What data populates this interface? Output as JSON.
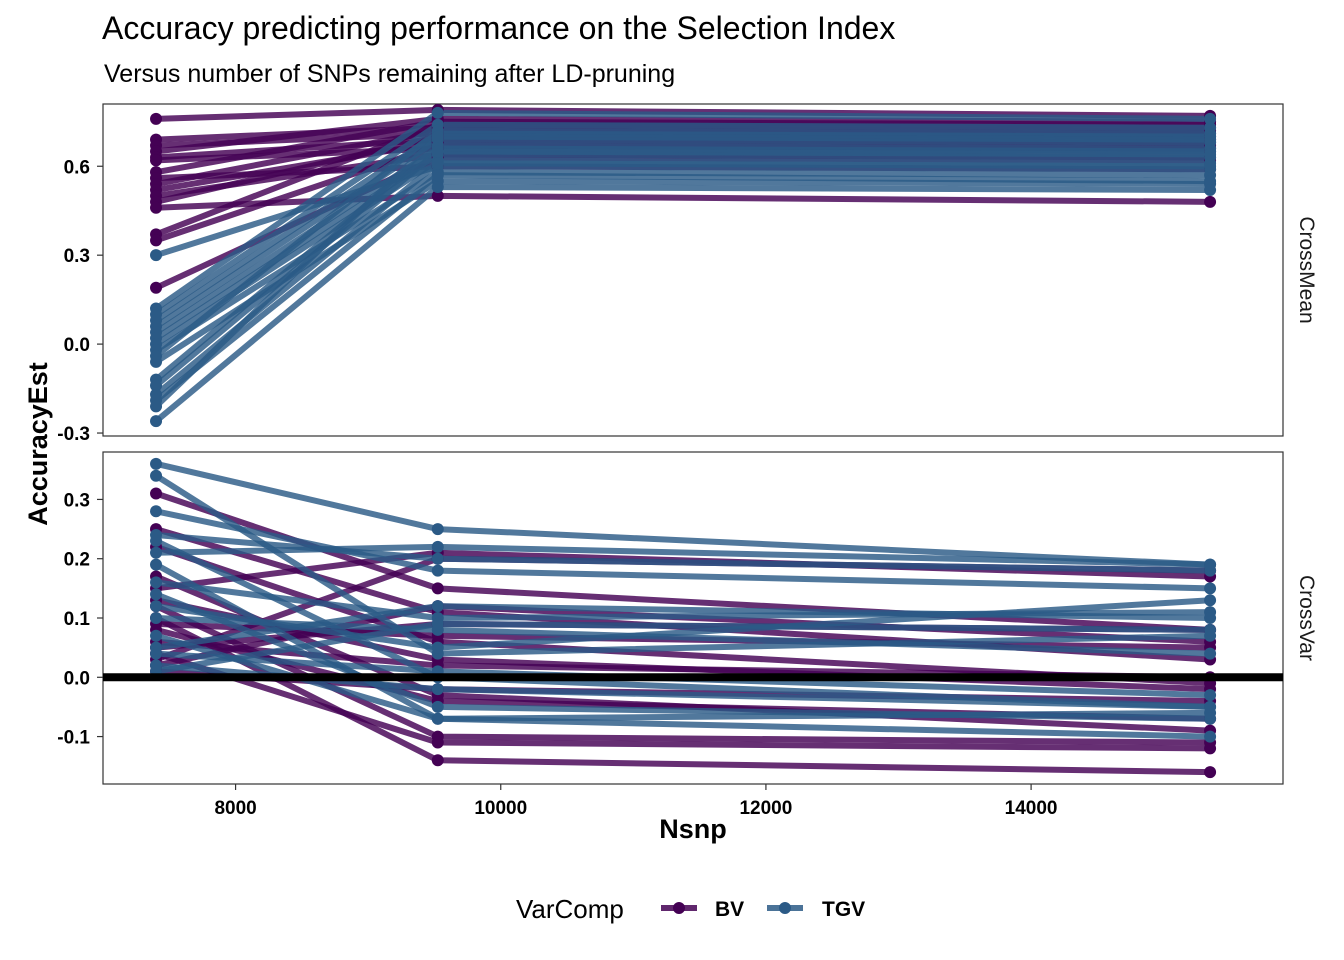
{
  "chart_data": {
    "type": "line",
    "title": "Accuracy predicting performance on the Selection Index",
    "subtitle": "Versus number of SNPs remaining after LD-pruning",
    "xlabel": "Nsnp",
    "ylabel": "AccuracyEst",
    "xlim": [
      7000,
      15900
    ],
    "x_ticks": [
      "8000",
      "10000",
      "12000",
      "14000"
    ],
    "x": [
      7400,
      9525,
      15350
    ],
    "legend": {
      "title": "VarComp",
      "position": "bottom",
      "entries": [
        {
          "name": "BV",
          "color": "#440154"
        },
        {
          "name": "TGV",
          "color": "#2b5a86"
        }
      ]
    },
    "facets": [
      {
        "name": "CrossMean",
        "ylim": [
          -0.31,
          0.81
        ],
        "y_ticks": [
          "-0.3",
          "0.0",
          "0.3",
          "0.6"
        ],
        "series": [
          {
            "group": "BV",
            "values": [
              0.76,
              0.79,
              0.77
            ]
          },
          {
            "group": "BV",
            "values": [
              0.69,
              0.73,
              0.72
            ]
          },
          {
            "group": "BV",
            "values": [
              0.67,
              0.71,
              0.7
            ]
          },
          {
            "group": "BV",
            "values": [
              0.65,
              0.76,
              0.75
            ]
          },
          {
            "group": "BV",
            "values": [
              0.63,
              0.69,
              0.68
            ]
          },
          {
            "group": "BV",
            "values": [
              0.62,
              0.66,
              0.65
            ]
          },
          {
            "group": "BV",
            "values": [
              0.58,
              0.75,
              0.74
            ]
          },
          {
            "group": "BV",
            "values": [
              0.56,
              0.6,
              0.59
            ]
          },
          {
            "group": "BV",
            "values": [
              0.54,
              0.72,
              0.71
            ]
          },
          {
            "group": "BV",
            "values": [
              0.52,
              0.68,
              0.67
            ]
          },
          {
            "group": "BV",
            "values": [
              0.5,
              0.64,
              0.63
            ]
          },
          {
            "group": "BV",
            "values": [
              0.48,
              0.7,
              0.69
            ]
          },
          {
            "group": "BV",
            "values": [
              0.46,
              0.5,
              0.48
            ]
          },
          {
            "group": "BV",
            "values": [
              0.37,
              0.74,
              0.73
            ]
          },
          {
            "group": "BV",
            "values": [
              0.35,
              0.67,
              0.66
            ]
          },
          {
            "group": "BV",
            "values": [
              0.19,
              0.63,
              0.62
            ]
          },
          {
            "group": "TGV",
            "values": [
              0.3,
              0.6,
              0.59
            ]
          },
          {
            "group": "TGV",
            "values": [
              0.12,
              0.78,
              0.76
            ]
          },
          {
            "group": "TGV",
            "values": [
              0.1,
              0.74,
              0.73
            ]
          },
          {
            "group": "TGV",
            "values": [
              0.08,
              0.71,
              0.7
            ]
          },
          {
            "group": "TGV",
            "values": [
              0.06,
              0.69,
              0.68
            ]
          },
          {
            "group": "TGV",
            "values": [
              0.04,
              0.66,
              0.65
            ]
          },
          {
            "group": "TGV",
            "values": [
              0.02,
              0.64,
              0.63
            ]
          },
          {
            "group": "TGV",
            "values": [
              0.0,
              0.62,
              0.61
            ]
          },
          {
            "group": "TGV",
            "values": [
              -0.02,
              0.58,
              0.57
            ]
          },
          {
            "group": "TGV",
            "values": [
              -0.04,
              0.72,
              0.71
            ]
          },
          {
            "group": "TGV",
            "values": [
              -0.06,
              0.55,
              0.54
            ]
          },
          {
            "group": "TGV",
            "values": [
              -0.12,
              0.67,
              0.66
            ]
          },
          {
            "group": "TGV",
            "values": [
              -0.14,
              0.65,
              0.64
            ]
          },
          {
            "group": "TGV",
            "values": [
              -0.17,
              0.61,
              0.6
            ]
          },
          {
            "group": "TGV",
            "values": [
              -0.19,
              0.57,
              0.55
            ]
          },
          {
            "group": "TGV",
            "values": [
              -0.21,
              0.7,
              0.69
            ]
          },
          {
            "group": "TGV",
            "values": [
              -0.26,
              0.53,
              0.52
            ]
          }
        ]
      },
      {
        "name": "CrossVar",
        "ylim": [
          -0.18,
          0.38
        ],
        "y_ticks": [
          "-0.1",
          "0.0",
          "0.1",
          "0.2",
          "0.3"
        ],
        "hline": 0,
        "series": [
          {
            "group": "BV",
            "values": [
              0.31,
              0.15,
              0.08
            ]
          },
          {
            "group": "BV",
            "values": [
              0.25,
              0.11,
              0.03
            ]
          },
          {
            "group": "BV",
            "values": [
              0.22,
              0.06,
              -0.01
            ]
          },
          {
            "group": "BV",
            "values": [
              0.17,
              -0.03,
              -0.09
            ]
          },
          {
            "group": "BV",
            "values": [
              0.15,
              0.21,
              0.17
            ]
          },
          {
            "group": "BV",
            "values": [
              0.13,
              0.03,
              -0.02
            ]
          },
          {
            "group": "BV",
            "values": [
              0.12,
              -0.1,
              -0.11
            ]
          },
          {
            "group": "BV",
            "values": [
              0.1,
              -0.14,
              -0.16
            ]
          },
          {
            "group": "BV",
            "values": [
              0.09,
              0.07,
              0.05
            ]
          },
          {
            "group": "BV",
            "values": [
              0.08,
              -0.04,
              -0.07
            ]
          },
          {
            "group": "BV",
            "values": [
              0.06,
              0.02,
              0.0
            ]
          },
          {
            "group": "BV",
            "values": [
              0.05,
              0.09,
              0.08
            ]
          },
          {
            "group": "BV",
            "values": [
              0.04,
              -0.11,
              -0.12
            ]
          },
          {
            "group": "BV",
            "values": [
              0.03,
              0.2,
              0.18
            ]
          },
          {
            "group": "BV",
            "values": [
              0.02,
              0.12,
              0.06
            ]
          },
          {
            "group": "BV",
            "values": [
              0.01,
              -0.02,
              -0.04
            ]
          },
          {
            "group": "TGV",
            "values": [
              0.36,
              0.25,
              0.19
            ]
          },
          {
            "group": "TGV",
            "values": [
              0.34,
              0.04,
              0.07
            ]
          },
          {
            "group": "TGV",
            "values": [
              0.28,
              0.18,
              0.15
            ]
          },
          {
            "group": "TGV",
            "values": [
              0.24,
              0.2,
              0.18
            ]
          },
          {
            "group": "TGV",
            "values": [
              0.23,
              0.0,
              -0.05
            ]
          },
          {
            "group": "TGV",
            "values": [
              0.21,
              0.22,
              0.19
            ]
          },
          {
            "group": "TGV",
            "values": [
              0.19,
              -0.07,
              -0.1
            ]
          },
          {
            "group": "TGV",
            "values": [
              0.16,
              0.1,
              0.11
            ]
          },
          {
            "group": "TGV",
            "values": [
              0.14,
              -0.05,
              -0.07
            ]
          },
          {
            "group": "TGV",
            "values": [
              0.12,
              0.05,
              0.13
            ]
          },
          {
            "group": "TGV",
            "values": [
              0.1,
              0.08,
              0.04
            ]
          },
          {
            "group": "TGV",
            "values": [
              0.07,
              -0.07,
              -0.06
            ]
          },
          {
            "group": "TGV",
            "values": [
              0.05,
              0.12,
              0.1
            ]
          },
          {
            "group": "TGV",
            "values": [
              0.04,
              0.01,
              -0.03
            ]
          },
          {
            "group": "TGV",
            "values": [
              0.02,
              -0.02,
              -0.05
            ]
          },
          {
            "group": "TGV",
            "values": [
              0.01,
              0.09,
              0.08
            ]
          }
        ]
      }
    ]
  }
}
